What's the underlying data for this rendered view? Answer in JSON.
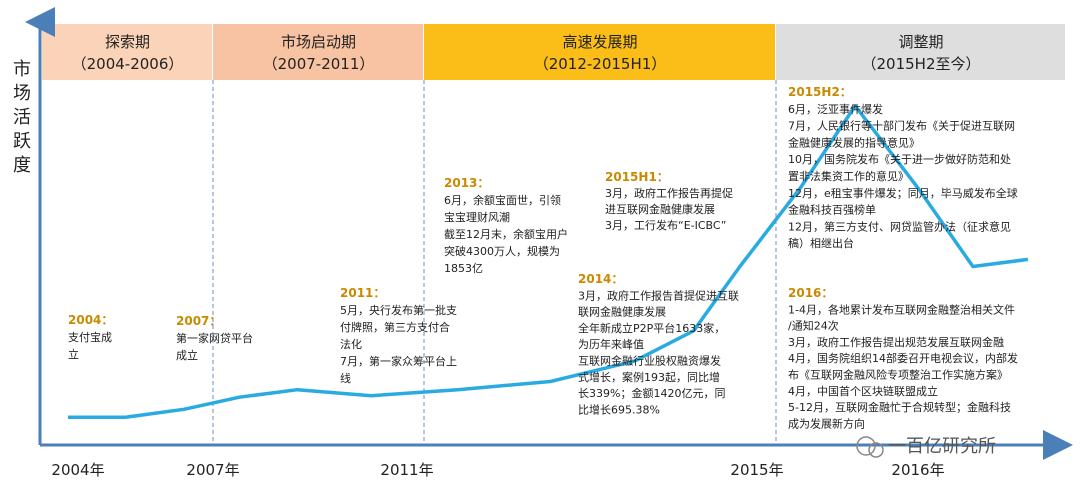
{
  "colors": {
    "phase_fills": [
      "#fbd3b8",
      "#f8c3a3",
      "#fbbd18",
      "#dedede"
    ],
    "line": "#29abe2",
    "axis": "#4a7fb7",
    "annotation_title": "#c98a00"
  },
  "chart_data": {
    "type": "line",
    "ylabel": "市场活跃度",
    "phases": [
      {
        "name": "探索期",
        "range": "（2004-2006）"
      },
      {
        "name": "市场启动期",
        "range": "（2007-2011）"
      },
      {
        "name": "高速发展期",
        "range": "（2012-2015H1）"
      },
      {
        "name": "调整期",
        "range": "（2015H2至今）"
      }
    ],
    "x_ticks": [
      "2004年",
      "2007年",
      "2011年",
      "2015年",
      "2016年"
    ],
    "series": [
      {
        "values": [
          [
            2004.0,
            0.078
          ],
          [
            2005.2,
            0.078
          ],
          [
            2006.4,
            0.1
          ],
          [
            2007.5,
            0.134
          ],
          [
            2008.6,
            0.155
          ],
          [
            2010.0,
            0.138
          ],
          [
            2011.4,
            0.155
          ],
          [
            2012.5,
            0.178
          ],
          [
            2013.5,
            0.235
          ],
          [
            2014.2,
            0.32
          ],
          [
            2014.75,
            0.5
          ],
          [
            2015.25,
            0.72
          ],
          [
            2015.6,
            0.95
          ],
          [
            2016.0,
            0.72
          ],
          [
            2016.35,
            0.5
          ],
          [
            2016.7,
            0.52
          ]
        ]
      }
    ],
    "annotations": [
      {
        "title": "2004：",
        "lines": [
          "支付宝成",
          "立"
        ]
      },
      {
        "title": "2007：",
        "lines": [
          "第一家网贷平台",
          "成立"
        ]
      },
      {
        "title": "2011：",
        "lines": [
          "5月，央行发布第一批支",
          "付牌照，第三方支付合",
          "法化",
          "7月，第一家众筹平台上",
          "线"
        ]
      },
      {
        "title": "2013：",
        "lines": [
          "6月，余额宝面世，引领",
          "宝宝理财风潮",
          "截至12月末，余额宝用户",
          "突破4300万人，规模为",
          "1853亿"
        ]
      },
      {
        "title": "2014：",
        "lines": [
          "3月，政府工作报告首提促进互联",
          "联网金融健康发展",
          "全年新成立P2P平台1633家，",
          "为历年来峰值",
          "互联网金融行业股权融资爆发",
          "式增长，案例193起，同比增",
          "长339%；金额1420亿元，同",
          "比增长695.38%"
        ]
      },
      {
        "title": "2015H1：",
        "lines": [
          "3月，政府工作报告再提促",
          "进互联网金融健康发展",
          "3月，工行发布“E-ICBC”"
        ]
      },
      {
        "title": "2015H2：",
        "lines": [
          "6月，泛亚事件爆发",
          "7月，人民银行等十部门发布《关于促进互联网",
          "金融健康发展的指导意见》",
          "10月，国务院发布《关于进一步做好防范和处",
          "置非法集资工作的意见》",
          "12月，e租宝事件爆发；同月，毕马威发布全球",
          "金融科技百强榜单",
          "12月，第三方支付、网贷监管办法（征求意见",
          "稿）相继出台"
        ]
      },
      {
        "title": "2016：",
        "lines": [
          "1-4月，各地累计发布互联网金融整治相关文件",
          "/通知24次",
          "3月，政府工作报告提出规范发展互联网金融",
          "4月，国务院组织14部委召开电视会议，内部发",
          "布《互联网金融风险专项整治工作实施方案》",
          "4月，中国首个区块链联盟成立",
          "5-12月，互联网金融忙于合规转型；金融科技",
          "成为发展新方向"
        ]
      }
    ]
  },
  "watermark": "一百亿研究所"
}
